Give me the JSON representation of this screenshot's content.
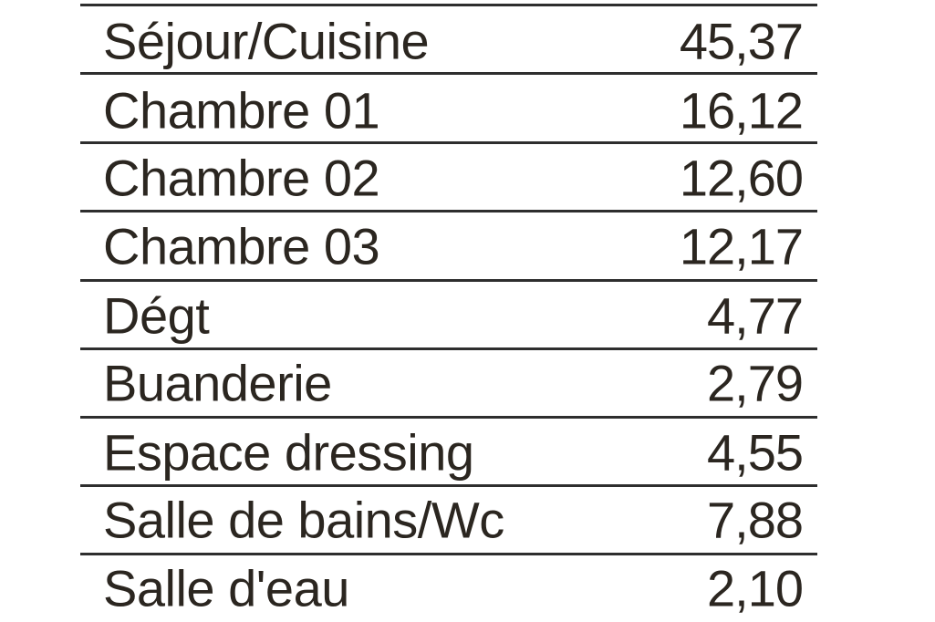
{
  "rooms": [
    {
      "name": "Séjour/Cuisine",
      "area": "45,37"
    },
    {
      "name": "Chambre 01",
      "area": "16,12"
    },
    {
      "name": "Chambre 02",
      "area": "12,60"
    },
    {
      "name": "Chambre 03",
      "area": "12,17"
    },
    {
      "name": "Dégt",
      "area": "4,77"
    },
    {
      "name": "Buanderie",
      "area": "2,79"
    },
    {
      "name": "Espace dressing",
      "area": "4,55"
    },
    {
      "name": "Salle de bains/Wc",
      "area": "7,88"
    },
    {
      "name": "Salle d'eau",
      "area": "2,10"
    }
  ]
}
